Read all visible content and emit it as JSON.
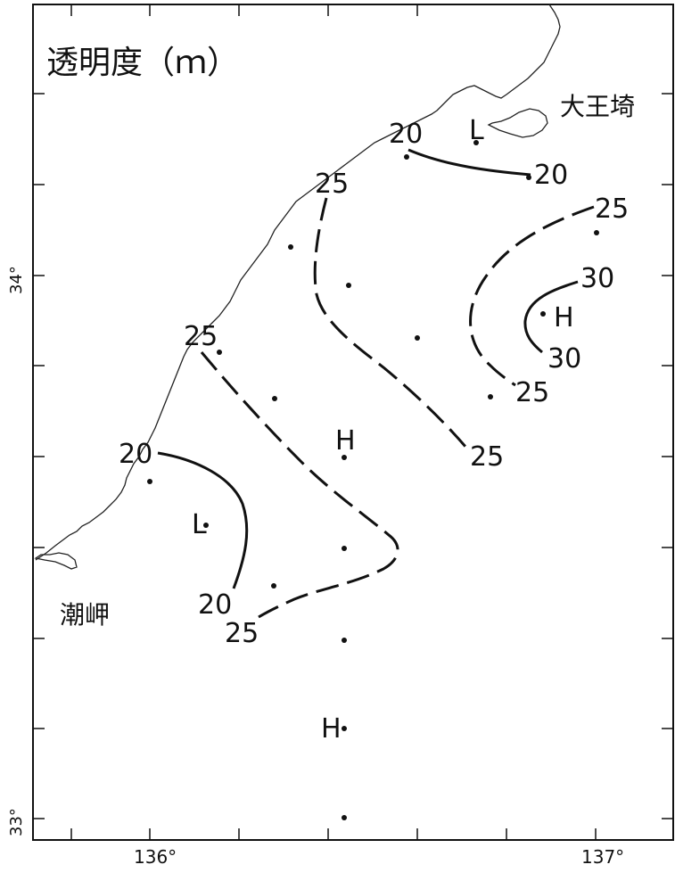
{
  "title": "透明度（ｍ）",
  "places": {
    "daiozaki": "大王埼",
    "shionomisaki": "潮岬"
  },
  "axis": {
    "x_ticks": [
      "136°",
      "137°"
    ],
    "y_ticks": [
      "34°",
      "33°"
    ]
  },
  "contour_labels": {
    "c20_top_left": "20",
    "c20_top_right": "20",
    "c25_north": "25",
    "c25_east_top": "25",
    "c30_top": "30",
    "c30_bottom": "30",
    "c25_east_bottom": "25",
    "c25_center_bottom": "25",
    "c25_west_top": "25",
    "c20_west_top": "20",
    "c20_west_bottom": "20",
    "c25_south": "25"
  },
  "markers": {
    "low_top": "L",
    "high_east": "H",
    "high_center": "H",
    "low_west": "L",
    "high_south": "H"
  }
}
